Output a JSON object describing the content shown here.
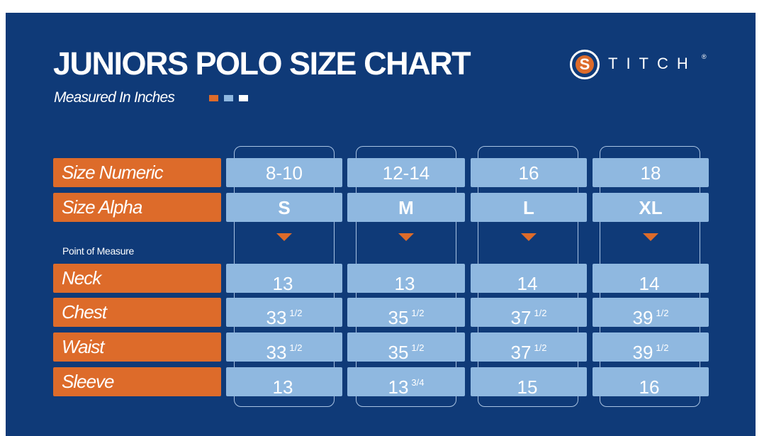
{
  "chart": {
    "title": "JUNIORS POLO SIZE CHART",
    "subtitle": "Measured In Inches",
    "point_of_measure_label": "Point of Measure",
    "colors": {
      "background": "#0f3a78",
      "label": "#dd6b2a",
      "cell": "#8fb8e0",
      "outline": "#a9c3e2"
    },
    "legend_squares": [
      "#dd6b2a",
      "#8fb8e0",
      "#ffffff"
    ]
  },
  "logo": {
    "mark": "S",
    "text": "TITCH",
    "registered": "®"
  },
  "header_rows": [
    {
      "label": "Size Numeric",
      "values": [
        "8-10",
        "12-14",
        "16",
        "18"
      ]
    },
    {
      "label": "Size Alpha",
      "values": [
        "S",
        "M",
        "L",
        "XL"
      ]
    }
  ],
  "measure_rows": [
    {
      "label": "Neck",
      "values": [
        {
          "whole": "13",
          "frac": ""
        },
        {
          "whole": "13",
          "frac": ""
        },
        {
          "whole": "14",
          "frac": ""
        },
        {
          "whole": "14",
          "frac": ""
        }
      ]
    },
    {
      "label": "Chest",
      "values": [
        {
          "whole": "33",
          "frac": "1/2"
        },
        {
          "whole": "35",
          "frac": "1/2"
        },
        {
          "whole": "37",
          "frac": "1/2"
        },
        {
          "whole": "39",
          "frac": "1/2"
        }
      ]
    },
    {
      "label": "Waist",
      "values": [
        {
          "whole": "33",
          "frac": "1/2"
        },
        {
          "whole": "35",
          "frac": "1/2"
        },
        {
          "whole": "37",
          "frac": "1/2"
        },
        {
          "whole": "39",
          "frac": "1/2"
        }
      ]
    },
    {
      "label": "Sleeve",
      "values": [
        {
          "whole": "13",
          "frac": ""
        },
        {
          "whole": "13",
          "frac": "3/4"
        },
        {
          "whole": "15",
          "frac": ""
        },
        {
          "whole": "16",
          "frac": ""
        }
      ]
    }
  ]
}
